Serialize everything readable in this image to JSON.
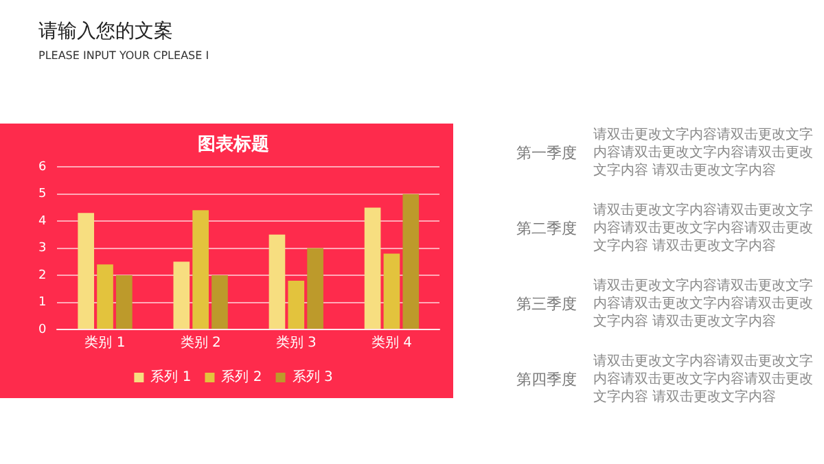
{
  "chart_data": {
    "type": "bar",
    "title": "图表标题",
    "categories": [
      "类别 1",
      "类别 2",
      "类别 3",
      "类别 4"
    ],
    "series": [
      {
        "name": "系列 1",
        "color": "#f7de80",
        "values": [
          4.3,
          2.5,
          3.5,
          4.5
        ]
      },
      {
        "name": "系列 2",
        "color": "#e3c33d",
        "values": [
          2.4,
          4.4,
          1.8,
          2.8
        ]
      },
      {
        "name": "系列 3",
        "color": "#bd9a2b",
        "values": [
          2,
          2,
          3,
          5
        ]
      }
    ],
    "ylim": [
      0,
      6
    ],
    "yticks": [
      0,
      1,
      2,
      3,
      4,
      5,
      6
    ],
    "grid": "y",
    "legend": "bottom",
    "annotations": [
      "请输入您的文案",
      "PLEASE INPUT YOUR CPLEASE I",
      "第一季度",
      "请双击更改文字内容请双击更改文字内容请双击更改文字内容请双击更改文字内容 请双击更改文字内容",
      "第二季度",
      "请双击更改文字内容请双击更改文字内容请双击更改文字内容请双击更改文字内容 请双击更改文字内容",
      "第三季度",
      "请双击更改文字内容请双击更改文字内容请双击更改文字内容请双击更改文字内容 请双击更改文字内容",
      "第四季度",
      "请双击更改文字内容请双击更改文字内容请双击更改文字内容请双击更改文字内容 请双击更改文字内容"
    ]
  }
}
